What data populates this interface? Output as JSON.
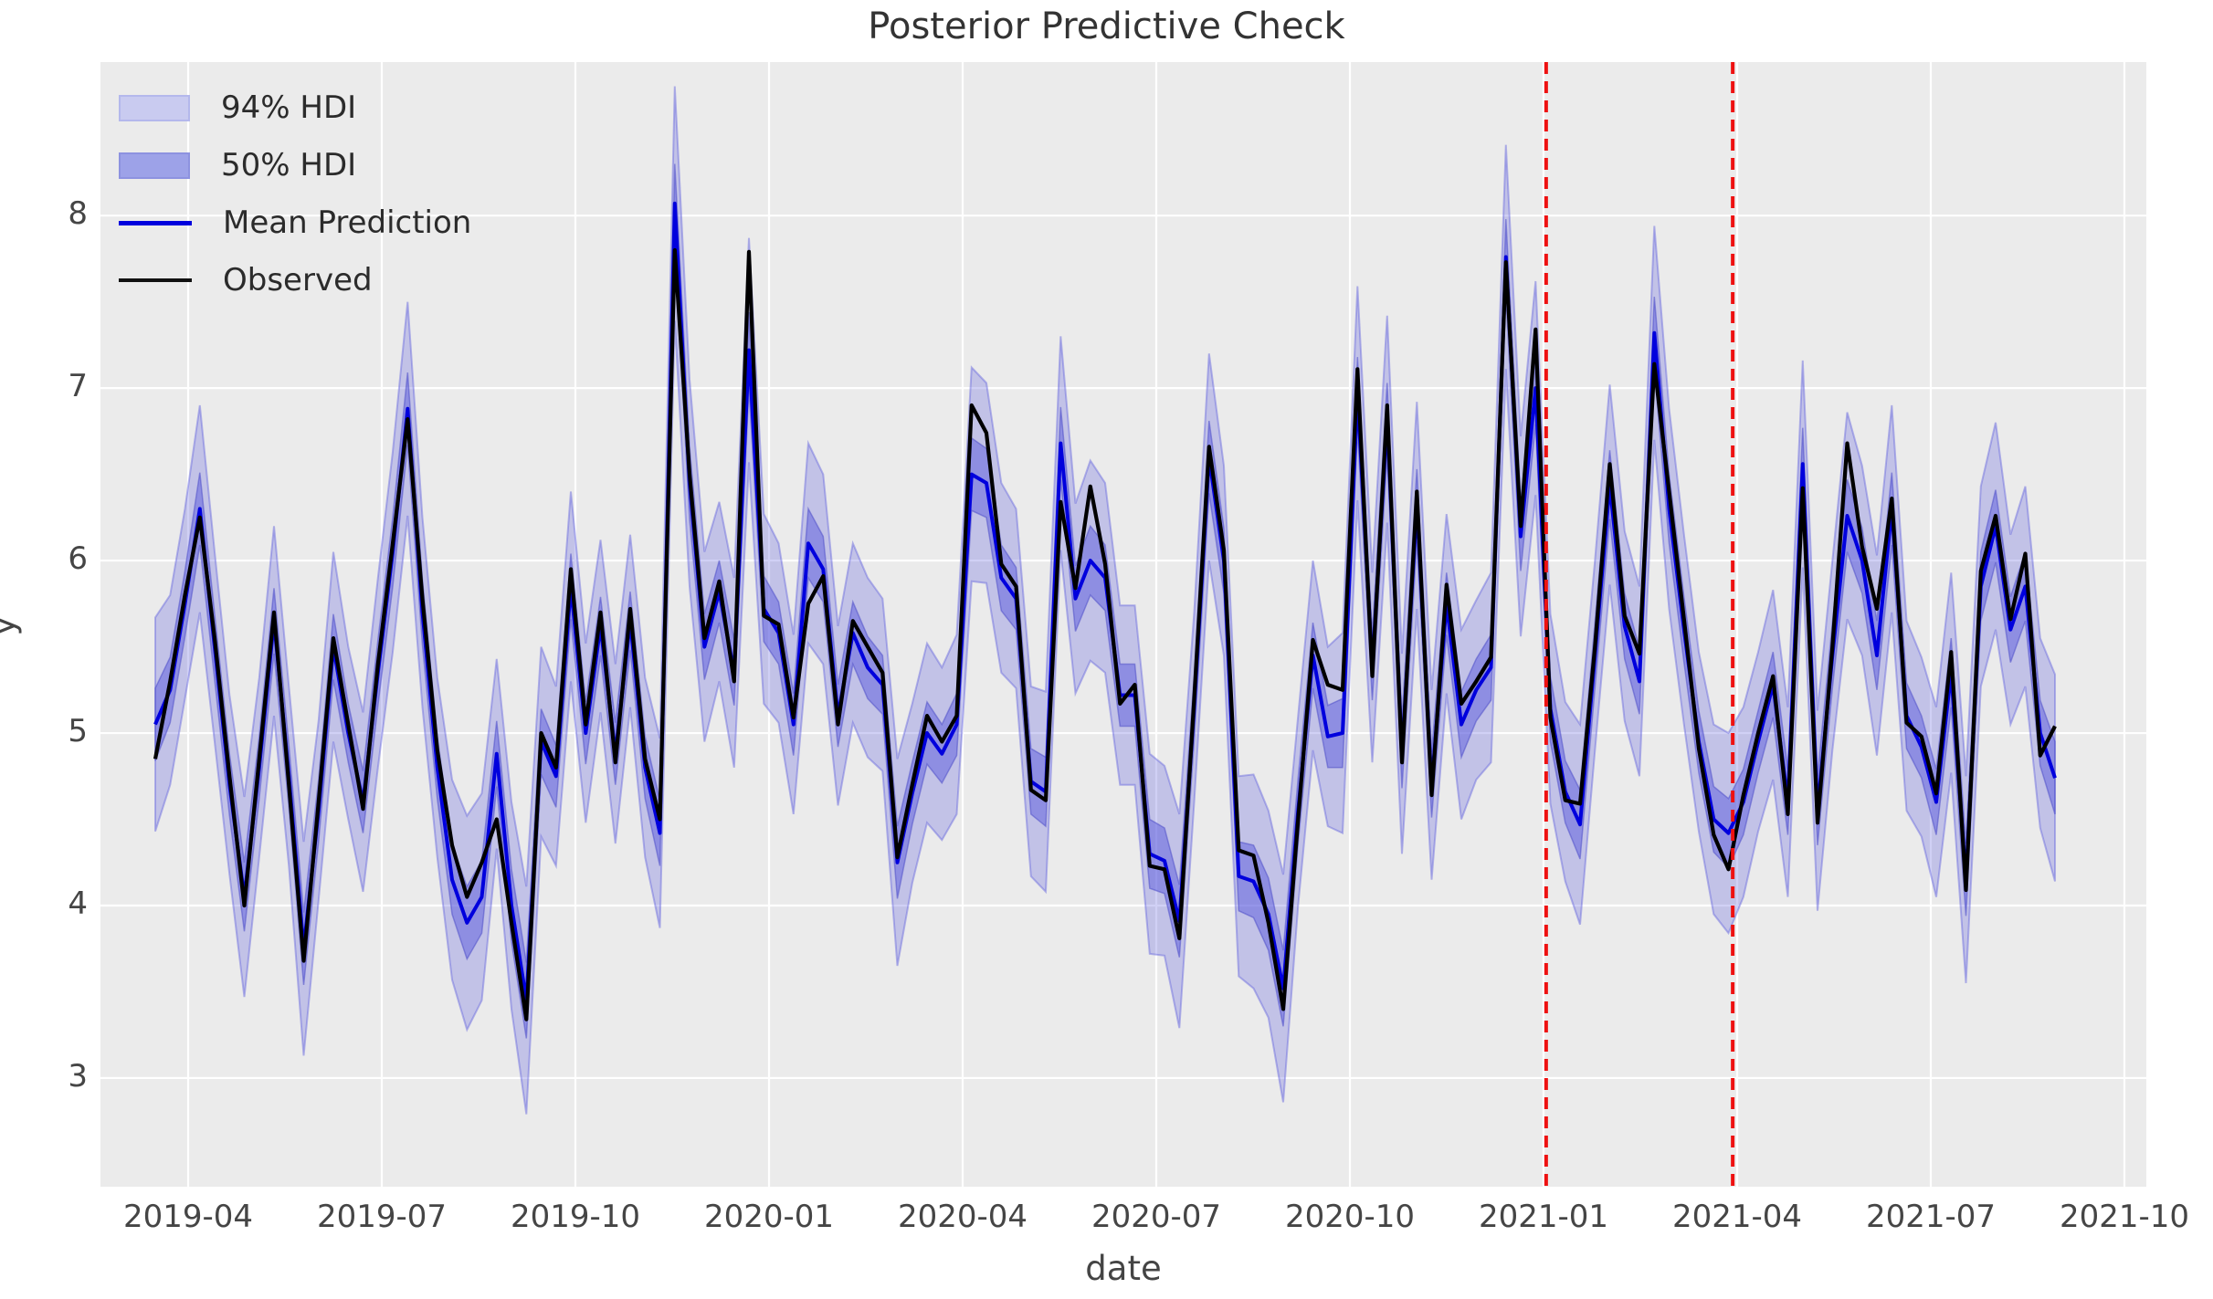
{
  "title": "Posterior Predictive Check",
  "axis": {
    "x_label": "date",
    "y_label": "y"
  },
  "legend": {
    "items": [
      {
        "label": "94% HDI",
        "swatch": "band-94"
      },
      {
        "label": "50% HDI",
        "swatch": "band-50"
      },
      {
        "label": "Mean Prediction",
        "swatch": "line-blue"
      },
      {
        "label": "Observed",
        "swatch": "line-black"
      }
    ]
  },
  "colors": {
    "axes_background": "#ebebeb",
    "grid": "#ffffff",
    "observed_line": "#000000",
    "mean_line": "#0000dd",
    "hdi94_fill": "rgba(100,100,222,0.30)",
    "hdi94_edge": "rgba(100,100,222,0.45)",
    "hdi50_fill": "rgba(100,100,222,0.55)",
    "hdi50_edge": "rgba(80,80,200,0.55)",
    "vline": "#ee1111",
    "tick_text": "#454545",
    "title_text": "#333333"
  },
  "chart_data": {
    "type": "line",
    "title": "Posterior Predictive Check",
    "xlabel": "date",
    "ylabel": "y",
    "ylim": [
      2.37,
      8.89
    ],
    "grid": true,
    "legend_position": "upper left",
    "x_tick_labels": [
      "2019-04",
      "2019-07",
      "2019-10",
      "2020-01",
      "2020-04",
      "2020-07",
      "2020-10",
      "2021-01",
      "2021-04",
      "2021-07",
      "2021-10"
    ],
    "y_ticks": [
      3,
      4,
      5,
      6,
      7,
      8
    ],
    "start_date": "2019-03-17",
    "freq_days": 7,
    "vlines": [
      "2021-01-01",
      "2021-03-30"
    ],
    "series_names": [
      "94% HDI",
      "50% HDI",
      "Mean Prediction",
      "Observed"
    ],
    "observed": [
      4.85,
      5.3,
      5.8,
      6.25,
      5.55,
      4.75,
      4.0,
      4.85,
      5.7,
      4.7,
      3.68,
      4.6,
      5.55,
      5.05,
      4.56,
      5.4,
      6.1,
      6.82,
      5.78,
      4.9,
      4.35,
      4.05,
      4.25,
      4.5,
      3.9,
      3.34,
      5.0,
      4.8,
      5.95,
      5.05,
      5.7,
      4.83,
      5.72,
      4.85,
      4.5,
      7.8,
      6.5,
      5.55,
      5.88,
      5.3,
      7.79,
      5.68,
      5.63,
      5.09,
      5.75,
      5.91,
      5.05,
      5.65,
      5.5,
      5.35,
      4.28,
      4.7,
      5.1,
      4.95,
      5.1,
      6.9,
      6.74,
      5.98,
      5.85,
      4.67,
      4.61,
      6.34,
      5.84,
      6.43,
      5.98,
      5.17,
      5.28,
      4.23,
      4.21,
      3.81,
      5.2,
      6.66,
      6.06,
      4.32,
      4.29,
      3.9,
      3.4,
      4.5,
      5.54,
      5.28,
      5.25,
      7.11,
      5.33,
      6.9,
      4.83,
      6.4,
      4.64,
      5.86,
      5.17,
      5.3,
      5.44,
      7.73,
      6.2,
      7.34,
      5.09,
      4.61,
      4.59,
      5.5,
      6.56,
      5.68,
      5.46,
      7.14,
      6.4,
      5.66,
      4.91,
      4.41,
      4.21,
      4.64,
      5.0,
      5.33,
      4.53,
      6.42,
      4.48,
      5.5,
      6.68,
      6.08,
      5.72,
      6.36,
      5.06,
      4.98,
      4.65,
      5.47,
      4.09,
      5.94,
      6.26,
      5.66,
      6.04,
      4.87,
      5.04
    ],
    "mean_prediction": [
      5.05,
      5.25,
      5.75,
      6.3,
      5.5,
      4.7,
      4.05,
      4.8,
      5.65,
      4.75,
      3.75,
      4.55,
      5.5,
      5.0,
      4.6,
      5.35,
      6.05,
      6.88,
      5.7,
      4.8,
      4.15,
      3.9,
      4.05,
      4.88,
      4.0,
      3.45,
      4.95,
      4.75,
      5.85,
      5.0,
      5.62,
      4.88,
      5.65,
      4.8,
      4.42,
      8.07,
      6.45,
      5.5,
      5.82,
      5.35,
      7.22,
      5.72,
      5.58,
      5.05,
      6.1,
      5.95,
      5.1,
      5.58,
      5.38,
      5.28,
      4.25,
      4.65,
      5.0,
      4.88,
      5.05,
      6.5,
      6.45,
      5.9,
      5.78,
      4.72,
      4.66,
      6.68,
      5.78,
      6.0,
      5.9,
      5.22,
      5.22,
      4.3,
      4.26,
      3.91,
      5.15,
      6.6,
      6.0,
      4.17,
      4.14,
      3.95,
      3.52,
      4.55,
      5.45,
      4.98,
      5.0,
      6.97,
      5.38,
      6.82,
      4.88,
      6.32,
      4.7,
      5.75,
      5.05,
      5.25,
      5.38,
      7.76,
      6.14,
      7.0,
      5.14,
      4.66,
      4.47,
      5.45,
      6.44,
      5.62,
      5.3,
      7.32,
      6.3,
      5.6,
      4.95,
      4.5,
      4.42,
      4.6,
      4.95,
      5.28,
      4.6,
      6.56,
      4.55,
      5.45,
      6.26,
      6.0,
      5.45,
      6.3,
      5.1,
      4.92,
      4.6,
      5.35,
      4.15,
      5.85,
      6.2,
      5.6,
      5.85,
      5.0,
      4.74
    ],
    "hdi94_halfwidth": [
      0.62,
      0.55,
      0.55,
      0.6,
      0.55,
      0.52,
      0.58,
      0.52,
      0.55,
      0.52,
      0.62,
      0.52,
      0.55,
      0.5,
      0.52,
      0.55,
      0.58,
      0.62,
      0.55,
      0.52,
      0.58,
      0.62,
      0.6,
      0.55,
      0.6,
      0.66,
      0.55,
      0.52,
      0.55,
      0.52,
      0.5,
      0.52,
      0.5,
      0.52,
      0.55,
      0.68,
      0.6,
      0.55,
      0.52,
      0.55,
      0.65,
      0.55,
      0.52,
      0.52,
      0.58,
      0.55,
      0.52,
      0.52,
      0.52,
      0.5,
      0.6,
      0.52,
      0.52,
      0.5,
      0.52,
      0.62,
      0.58,
      0.55,
      0.52,
      0.55,
      0.58,
      0.62,
      0.55,
      0.58,
      0.55,
      0.52,
      0.52,
      0.58,
      0.55,
      0.62,
      0.55,
      0.6,
      0.55,
      0.58,
      0.62,
      0.6,
      0.66,
      0.55,
      0.55,
      0.52,
      0.58,
      0.62,
      0.55,
      0.6,
      0.58,
      0.6,
      0.55,
      0.52,
      0.55,
      0.52,
      0.55,
      0.65,
      0.58,
      0.62,
      0.55,
      0.52,
      0.58,
      0.55,
      0.58,
      0.55,
      0.55,
      0.62,
      0.58,
      0.55,
      0.52,
      0.55,
      0.58,
      0.55,
      0.52,
      0.55,
      0.55,
      0.6,
      0.58,
      0.55,
      0.6,
      0.55,
      0.58,
      0.6,
      0.55,
      0.52,
      0.55,
      0.58,
      0.6,
      0.58,
      0.6,
      0.55,
      0.58,
      0.55,
      0.6
    ],
    "hdi50_halfwidth": [
      0.21,
      0.19,
      0.19,
      0.21,
      0.19,
      0.18,
      0.2,
      0.18,
      0.19,
      0.18,
      0.21,
      0.18,
      0.19,
      0.17,
      0.18,
      0.19,
      0.2,
      0.21,
      0.19,
      0.18,
      0.2,
      0.21,
      0.21,
      0.19,
      0.21,
      0.22,
      0.19,
      0.18,
      0.19,
      0.18,
      0.17,
      0.18,
      0.17,
      0.18,
      0.19,
      0.23,
      0.21,
      0.19,
      0.18,
      0.19,
      0.22,
      0.19,
      0.18,
      0.18,
      0.2,
      0.19,
      0.18,
      0.18,
      0.18,
      0.17,
      0.21,
      0.18,
      0.18,
      0.17,
      0.18,
      0.21,
      0.2,
      0.19,
      0.18,
      0.19,
      0.2,
      0.21,
      0.19,
      0.2,
      0.19,
      0.18,
      0.18,
      0.2,
      0.19,
      0.21,
      0.19,
      0.21,
      0.19,
      0.2,
      0.21,
      0.21,
      0.22,
      0.19,
      0.19,
      0.18,
      0.2,
      0.21,
      0.19,
      0.21,
      0.2,
      0.21,
      0.19,
      0.18,
      0.19,
      0.18,
      0.19,
      0.22,
      0.2,
      0.21,
      0.19,
      0.18,
      0.2,
      0.19,
      0.2,
      0.19,
      0.19,
      0.21,
      0.2,
      0.19,
      0.18,
      0.19,
      0.2,
      0.19,
      0.18,
      0.19,
      0.19,
      0.21,
      0.2,
      0.19,
      0.21,
      0.19,
      0.2,
      0.21,
      0.19,
      0.18,
      0.19,
      0.2,
      0.21,
      0.2,
      0.21,
      0.19,
      0.2,
      0.19,
      0.21
    ]
  }
}
